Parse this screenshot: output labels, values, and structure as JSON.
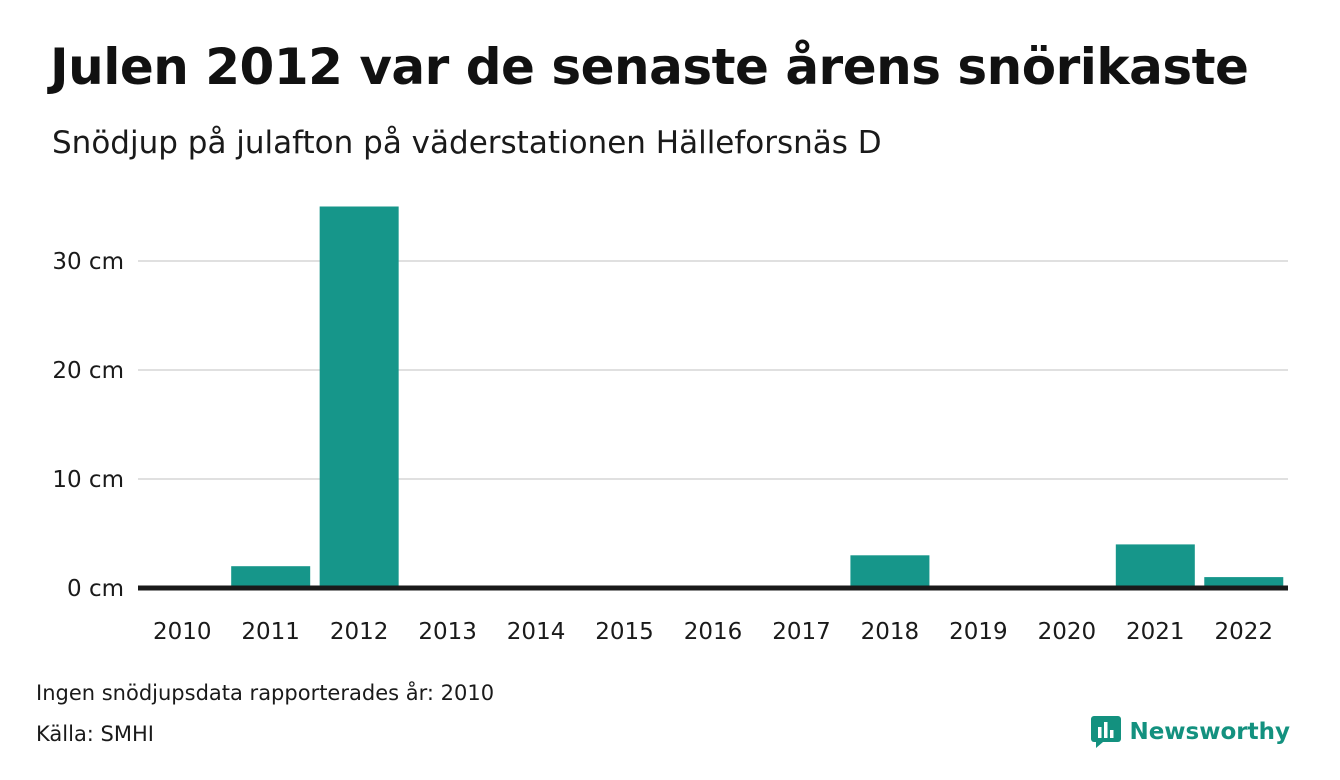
{
  "chart_data": {
    "type": "bar",
    "title": "Julen 2012 var de senaste årens snörikaste",
    "subtitle": "Snödjup på julafton på väderstationen Hälleforsnäs D",
    "categories": [
      "2010",
      "2011",
      "2012",
      "2013",
      "2014",
      "2015",
      "2016",
      "2017",
      "2018",
      "2019",
      "2020",
      "2021",
      "2022"
    ],
    "values": [
      null,
      2,
      35,
      0,
      0,
      0,
      0,
      0,
      3,
      0,
      0,
      4,
      1
    ],
    "yticks": [
      0,
      10,
      20,
      30
    ],
    "ytick_labels": [
      "0 cm",
      "10 cm",
      "20 cm",
      "30 cm"
    ],
    "ylim": [
      0,
      35
    ],
    "grid": true,
    "bar_color": "#16968a",
    "axis_color": "#1a1a1a",
    "grid_color": "#e0e0e0"
  },
  "footer": {
    "note": "Ingen snödjupsdata rapporterades år: 2010",
    "source": "Källa: SMHI"
  },
  "brand": {
    "name": "Newsworthy",
    "icon": "bar-chart-logo-icon",
    "color": "#13917f"
  }
}
